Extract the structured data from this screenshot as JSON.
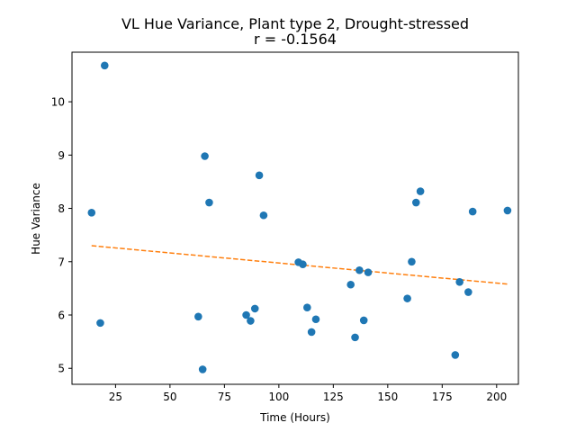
{
  "chart_data": {
    "type": "scatter",
    "title": "VL Hue Variance, Plant type 2, Drought-stressed",
    "subtitle": "r = -0.1564",
    "xlabel": "Time (Hours)",
    "ylabel": "Hue Variance",
    "xlim": [
      5,
      210
    ],
    "ylim": [
      4.7,
      10.93
    ],
    "xticks": [
      25,
      50,
      75,
      100,
      125,
      150,
      175,
      200
    ],
    "yticks": [
      5,
      6,
      7,
      8,
      9,
      10
    ],
    "grid": false,
    "colors": {
      "points": "#1f77b4",
      "trend": "#ff7f0e"
    },
    "series": [
      {
        "kind": "points",
        "x": [
          14,
          18,
          20,
          63,
          65,
          66,
          68,
          85,
          87,
          89,
          91,
          93,
          109,
          111,
          113,
          115,
          117,
          133,
          135,
          137,
          139,
          141,
          159,
          161,
          163,
          165,
          181,
          183,
          187,
          189,
          205
        ],
        "y": [
          7.92,
          5.85,
          10.68,
          5.97,
          4.98,
          8.98,
          8.11,
          6.0,
          5.89,
          6.12,
          8.62,
          7.87,
          6.99,
          6.95,
          6.14,
          5.68,
          5.92,
          6.57,
          5.58,
          6.84,
          5.9,
          6.8,
          6.31,
          7.0,
          8.11,
          8.32,
          5.25,
          6.62,
          6.43,
          7.94,
          7.96
        ]
      },
      {
        "kind": "trend",
        "x": [
          14,
          205
        ],
        "y": [
          7.3,
          6.58
        ]
      }
    ]
  }
}
